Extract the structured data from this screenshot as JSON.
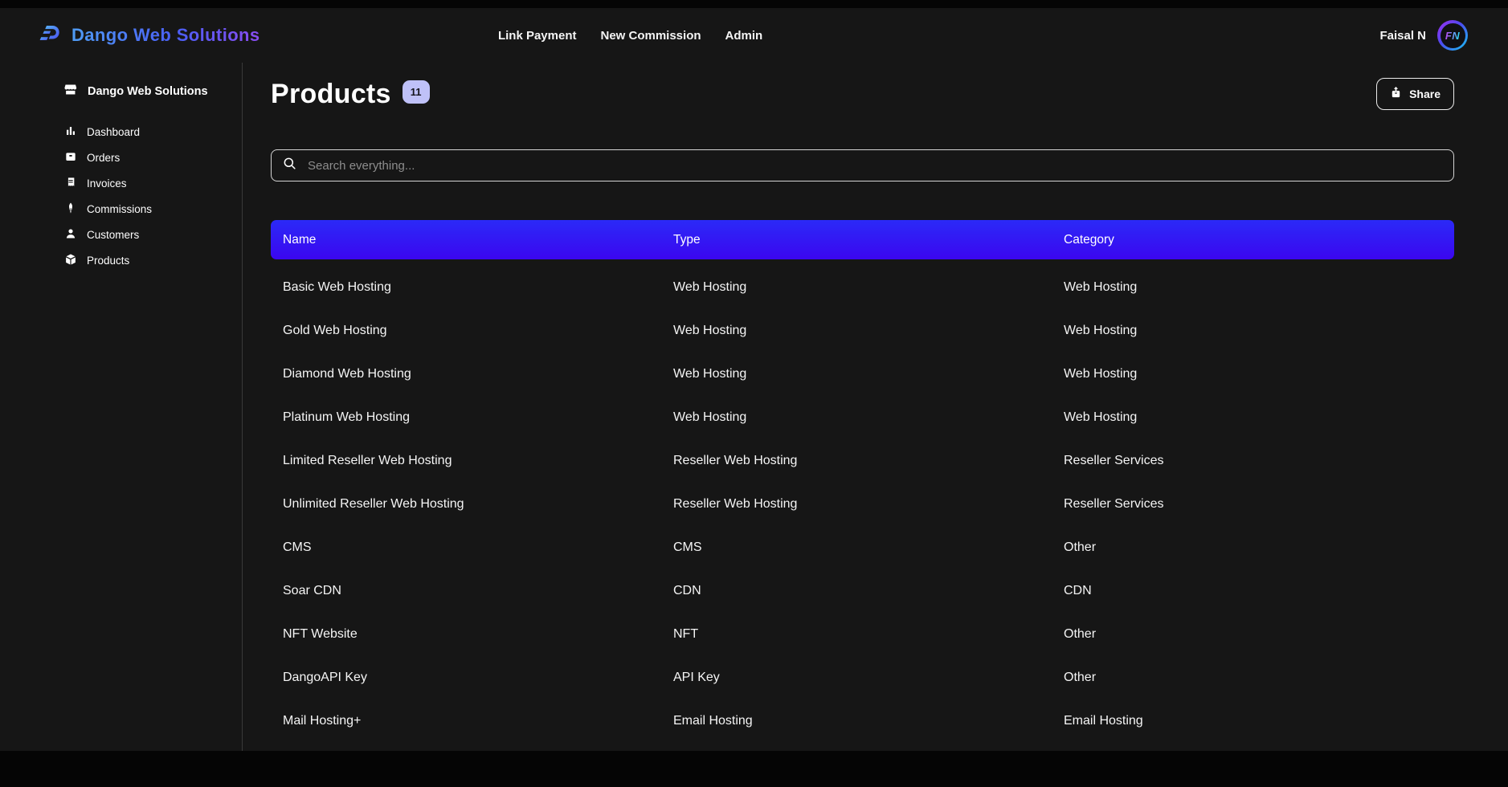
{
  "navbar": {
    "brand": "Dango Web Solutions",
    "links": [
      "Link Payment",
      "New Commission",
      "Admin"
    ],
    "user": {
      "name": "Faisal N",
      "initials": "FN"
    }
  },
  "sidebar": {
    "header": {
      "label": "Dango Web Solutions",
      "icon": "storefront-icon"
    },
    "items": [
      {
        "label": "Dashboard",
        "icon": "bar-chart-icon"
      },
      {
        "label": "Orders",
        "icon": "orders-box-icon"
      },
      {
        "label": "Invoices",
        "icon": "receipt-icon"
      },
      {
        "label": "Commissions",
        "icon": "ink-pen-icon"
      },
      {
        "label": "Customers",
        "icon": "person-icon"
      },
      {
        "label": "Products",
        "icon": "package-icon"
      }
    ]
  },
  "main": {
    "title": "Products",
    "count_badge": "11",
    "share_button": {
      "label": "Share",
      "icon": "share-icon"
    },
    "search": {
      "placeholder": "Search everything...",
      "icon": "search-icon"
    },
    "table": {
      "columns": [
        "Name",
        "Type",
        "Category"
      ],
      "rows": [
        [
          "Basic Web Hosting",
          "Web Hosting",
          "Web Hosting"
        ],
        [
          "Gold Web Hosting",
          "Web Hosting",
          "Web Hosting"
        ],
        [
          "Diamond Web Hosting",
          "Web Hosting",
          "Web Hosting"
        ],
        [
          "Platinum Web Hosting",
          "Web Hosting",
          "Web Hosting"
        ],
        [
          "Limited Reseller Web Hosting",
          "Reseller Web Hosting",
          "Reseller Services"
        ],
        [
          "Unlimited Reseller Web Hosting",
          "Reseller Web Hosting",
          "Reseller Services"
        ],
        [
          "CMS",
          "CMS",
          "Other"
        ],
        [
          "Soar CDN",
          "CDN",
          "CDN"
        ],
        [
          "NFT Website",
          "NFT",
          "Other"
        ],
        [
          "DangoAPI Key",
          "API Key",
          "Other"
        ],
        [
          "Mail Hosting+",
          "Email Hosting",
          "Email Hosting"
        ]
      ]
    }
  },
  "colors": {
    "table_header_top": "#2b2af7",
    "table_header_bottom": "#3b06f0",
    "count_badge_bg": "#bfc1f8",
    "brand_gradient_start": "#4f9bf3",
    "brand_gradient_end": "#8a4cf0",
    "avatar_gradient_start": "#a22cf0",
    "avatar_gradient_end": "#17c9f2",
    "page_bg": "#161616"
  }
}
